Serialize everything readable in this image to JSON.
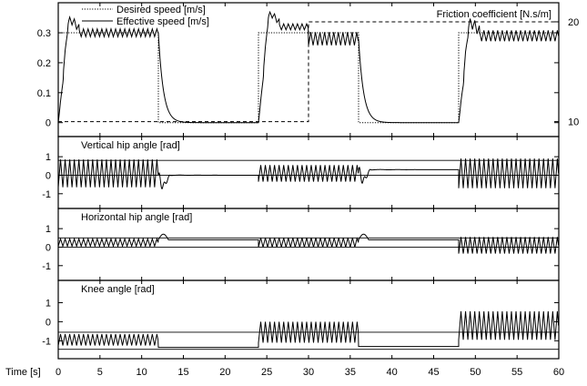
{
  "chart_data": [
    {
      "type": "line",
      "panel": "speed",
      "legend": {
        "placement": "top-left",
        "entries": [
          {
            "label": "Desired speed [m/s]",
            "style": "dotted"
          },
          {
            "label": "Effective speed [m/s]",
            "style": "solid"
          }
        ]
      },
      "right_axis_label": "Friction coefficient [N.s/m]",
      "y_ticks": [
        "0",
        "0.1",
        "0.2",
        "0.3"
      ],
      "y_tick_values": [
        0,
        0.1,
        0.2,
        0.3
      ],
      "ylim": [
        -0.01,
        0.37
      ],
      "right_y_ticks": [
        "10",
        "20"
      ],
      "right_y_tick_values": [
        10,
        20
      ],
      "right_ylim": [
        9.6,
        21.0
      ],
      "series": [
        {
          "name": "Desired speed [m/s]",
          "style": "dotted",
          "x": [
            0,
            12,
            12,
            24,
            24,
            36,
            36,
            48,
            48,
            60
          ],
          "y": [
            0.3,
            0.3,
            0,
            0,
            0.3,
            0.3,
            0,
            0,
            0.3,
            0.3
          ]
        },
        {
          "name": "Effective speed [m/s]",
          "style": "solid",
          "segments": [
            {
              "x0": 0,
              "x1": 12,
              "mean": 0.3,
              "amp": 0.013,
              "period": 0.55,
              "start_from": 0
            },
            {
              "x0": 12,
              "x1": 24,
              "mean": 0.0,
              "amp": 0,
              "decay_from": 0.3
            },
            {
              "x0": 24,
              "x1": 30,
              "mean": 0.32,
              "amp": 0.01,
              "period": 0.55,
              "start_from": 0
            },
            {
              "x0": 30,
              "x1": 36,
              "mean": 0.28,
              "amp": 0.022,
              "period": 0.55
            },
            {
              "x0": 36,
              "x1": 48,
              "mean": 0.0,
              "amp": 0,
              "decay_from": 0.28
            },
            {
              "x0": 48,
              "x1": 60,
              "mean": 0.29,
              "amp": 0.018,
              "period": 0.55,
              "start_from": 0
            }
          ]
        },
        {
          "name": "Friction coefficient [N.s/m]",
          "style": "dashed",
          "axis": "right",
          "x": [
            0,
            30,
            30,
            60
          ],
          "y": [
            10,
            10,
            20,
            20
          ]
        }
      ]
    },
    {
      "type": "line",
      "panel": "vertical-hip",
      "title": "Vertical hip angle [rad]",
      "y_ticks": [
        "-1",
        "0",
        "1"
      ],
      "y_tick_values": [
        -1,
        0,
        1
      ],
      "ylim": [
        -1.6,
        1.4
      ],
      "reference_lines": [
        0,
        0.8
      ],
      "series": [
        {
          "style": "solid",
          "segments": [
            {
              "x0": 0,
              "x1": 12,
              "mean": 0.1,
              "amp": 0.75,
              "period": 0.55
            },
            {
              "x0": 12,
              "x1": 24,
              "mean": 0.0,
              "amp": 0,
              "dip": -0.9
            },
            {
              "x0": 24,
              "x1": 36,
              "mean": 0.1,
              "amp": 0.45,
              "period": 0.55
            },
            {
              "x0": 36,
              "x1": 48,
              "mean": 0.3,
              "amp": 0,
              "dip": -0.9
            },
            {
              "x0": 48,
              "x1": 60,
              "mean": 0.1,
              "amp": 0.8,
              "period": 0.55
            }
          ]
        }
      ]
    },
    {
      "type": "line",
      "panel": "horizontal-hip",
      "title": "Horizontal hip angle [rad]",
      "y_ticks": [
        "-1",
        "0",
        "1"
      ],
      "y_tick_values": [
        -1,
        0,
        1
      ],
      "ylim": [
        -1.6,
        1.4
      ],
      "reference_lines": [
        0,
        0.5
      ],
      "series": [
        {
          "style": "solid",
          "segments": [
            {
              "x0": 0,
              "x1": 12,
              "mean": 0.25,
              "amp": 0.2,
              "period": 0.55
            },
            {
              "x0": 12,
              "x1": 24,
              "mean": 0.4,
              "amp": 0,
              "bump": 0.7
            },
            {
              "x0": 24,
              "x1": 36,
              "mean": 0.25,
              "amp": 0.25,
              "period": 0.55
            },
            {
              "x0": 36,
              "x1": 48,
              "mean": 0.4,
              "amp": 0,
              "bump": 0.7
            },
            {
              "x0": 48,
              "x1": 60,
              "mean": 0.1,
              "amp": 0.45,
              "period": 0.55
            }
          ]
        }
      ]
    },
    {
      "type": "line",
      "panel": "knee",
      "title": "Knee angle [rad]",
      "y_ticks": [
        "-1",
        "0",
        "1"
      ],
      "y_tick_values": [
        -1,
        0,
        1
      ],
      "ylim": [
        -1.75,
        1.5
      ],
      "reference_lines": [
        -1.45,
        -0.55
      ],
      "series": [
        {
          "style": "solid",
          "segments": [
            {
              "x0": 0,
              "x1": 12,
              "mean": -0.95,
              "amp": 0.3,
              "period": 0.55
            },
            {
              "x0": 12,
              "x1": 24,
              "mean": -1.35,
              "amp": 0
            },
            {
              "x0": 24,
              "x1": 36,
              "mean": -0.55,
              "amp": 0.55,
              "period": 0.55
            },
            {
              "x0": 36,
              "x1": 48,
              "mean": -1.3,
              "amp": 0
            },
            {
              "x0": 48,
              "x1": 60,
              "mean": -0.2,
              "amp": 0.75,
              "period": 0.55
            }
          ]
        }
      ]
    }
  ],
  "x_axis": {
    "label": "Time [s]",
    "ticks": [
      "0",
      "5",
      "10",
      "15",
      "20",
      "25",
      "30",
      "35",
      "40",
      "45",
      "50",
      "55",
      "60"
    ],
    "tick_values": [
      0,
      5,
      10,
      15,
      20,
      25,
      30,
      35,
      40,
      45,
      50,
      55,
      60
    ],
    "xlim": [
      0,
      60
    ]
  },
  "grid": false
}
